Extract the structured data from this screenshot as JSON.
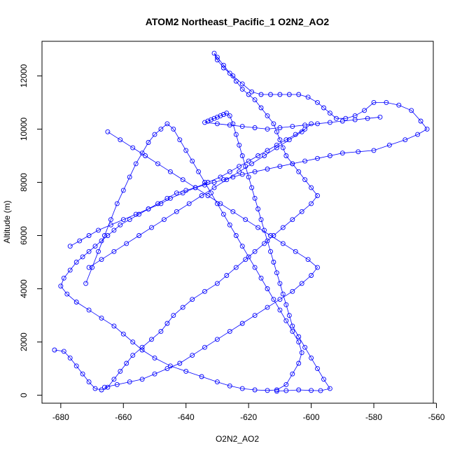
{
  "chart_data": {
    "type": "line",
    "title": "ATOM2 Northeast_Pacific_1 O2N2_AO2",
    "xlabel": "O2N2_AO2",
    "ylabel": "Altitude (m)",
    "xlim": [
      -686,
      -561
    ],
    "ylim": [
      -300,
      13300
    ],
    "xticks": [
      -680,
      -660,
      -640,
      -620,
      -600,
      -580,
      -560
    ],
    "yticks": [
      0,
      2000,
      4000,
      6000,
      8000,
      10000,
      12000
    ],
    "xtick_labels": [
      "-680",
      "-660",
      "-640",
      "-620",
      "-600",
      "-580",
      "-560"
    ],
    "ytick_labels": [
      "0",
      "2000",
      "4000",
      "6000",
      "8000",
      "10000",
      "12000"
    ],
    "grid": false,
    "legend": "none",
    "series": [
      {
        "color": "#0000ff",
        "marker": "open-circle",
        "x": [
          -682,
          -679,
          -677,
          -675,
          -673,
          -671,
          -669,
          -667,
          -665,
          -663,
          -661,
          -659,
          -657,
          -654,
          -651,
          -648,
          -646,
          -644,
          -641,
          -638,
          -634,
          -630,
          -627,
          -624,
          -621,
          -618,
          -615,
          -612,
          -609,
          -606,
          -603,
          -600,
          -598,
          -600,
          -602,
          -604,
          -606,
          -608,
          -609,
          -610,
          -611,
          -612,
          -614,
          -616,
          -618,
          -620,
          -622,
          -624,
          -626,
          -628,
          -630,
          -631,
          -630,
          -628,
          -625,
          -622,
          -619,
          -616,
          -613,
          -610,
          -607,
          -604,
          -601,
          -598,
          -596,
          -594,
          -592,
          -589,
          -586,
          -583,
          -580,
          -576,
          -572,
          -568,
          -565,
          -563,
          -566,
          -570,
          -575,
          -580,
          -585,
          -590,
          -594,
          -598,
          -602,
          -606,
          -610,
          -614,
          -618,
          -622,
          -625,
          -628,
          -631,
          -634,
          -637,
          -640,
          -643,
          -646,
          -649,
          -652,
          -655,
          -658,
          -661,
          -663,
          -665,
          -667,
          -669,
          -671,
          -673,
          -675,
          -677,
          -679,
          -680,
          -678,
          -675,
          -671,
          -667,
          -663,
          -660,
          -657,
          -654,
          -650,
          -645,
          -640,
          -635,
          -630,
          -626,
          -622,
          -618,
          -614,
          -611,
          -608,
          -606,
          -604,
          -603,
          -604,
          -606,
          -608,
          -610,
          -612,
          -614,
          -616,
          -618,
          -620,
          -622,
          -624,
          -626,
          -628,
          -630,
          -632,
          -634,
          -636,
          -638,
          -640,
          -642,
          -644,
          -646,
          -648,
          -650,
          -652,
          -654,
          -656,
          -658,
          -660,
          -662,
          -664,
          -666,
          -668,
          -670,
          -672
        ],
        "y": [
          1700,
          1650,
          1400,
          1100,
          800,
          500,
          250,
          200,
          300,
          600,
          900,
          1200,
          1500,
          1800,
          2100,
          2400,
          2700,
          3000,
          3300,
          3600,
          3900,
          4200,
          4500,
          4800,
          5100,
          5400,
          5700,
          6000,
          6300,
          6600,
          6900,
          7200,
          7500,
          7800,
          8100,
          8400,
          8700,
          9000,
          9300,
          9600,
          9900,
          10200,
          10500,
          10800,
          11100,
          11300,
          11500,
          11800,
          12100,
          12400,
          12700,
          12850,
          12600,
          12300,
          12000,
          11700,
          11400,
          11300,
          11300,
          11300,
          11300,
          11300,
          11200,
          11000,
          10800,
          10600,
          10400,
          10400,
          10500,
          10700,
          11000,
          11000,
          10900,
          10700,
          10300,
          10000,
          9800,
          9600,
          9400,
          9200,
          9150,
          9100,
          9000,
          8900,
          8800,
          8700,
          8600,
          8500,
          8400,
          8300,
          8200,
          8100,
          8000,
          7900,
          7800,
          7700,
          7600,
          7400,
          7200,
          7000,
          6800,
          6600,
          6400,
          6200,
          6000,
          5800,
          5600,
          5400,
          5200,
          5000,
          4700,
          4400,
          4100,
          3800,
          3500,
          3200,
          2900,
          2600,
          2300,
          2000,
          1700,
          1400,
          1100,
          900,
          700,
          500,
          350,
          250,
          200,
          180,
          200,
          400,
          800,
          1200,
          1600,
          2000,
          2400,
          2800,
          3200,
          3600,
          4000,
          4400,
          4800,
          5200,
          5600,
          6000,
          6400,
          6800,
          7200,
          7600,
          8000,
          8400,
          8800,
          9200,
          9600,
          10000,
          10200,
          10000,
          9800,
          9500,
          9100,
          8700,
          8200,
          7700,
          7200,
          6600,
          6000,
          5400,
          4800,
          4200
        ]
      },
      {
        "color": "#0000ff",
        "marker": "open-circle",
        "x": [
          -611,
          -608,
          -604,
          -600,
          -597,
          -594,
          -596,
          -598,
          -600,
          -602,
          -604,
          -606,
          -607,
          -608,
          -609,
          -610,
          -611,
          -612,
          -613,
          -614,
          -615,
          -616,
          -617,
          -618,
          -619,
          -620,
          -621,
          -622,
          -623,
          -624,
          -625,
          -626,
          -627,
          -628,
          -629,
          -630,
          -631,
          -632,
          -633,
          -634,
          -630,
          -626,
          -622,
          -618,
          -614,
          -610,
          -606,
          -602,
          -598,
          -594,
          -590,
          -586,
          -582,
          -578
        ],
        "y": [
          150,
          170,
          200,
          180,
          170,
          250,
          600,
          1000,
          1400,
          1800,
          2200,
          2600,
          3000,
          3400,
          3800,
          4200,
          4600,
          5000,
          5400,
          5800,
          6200,
          6600,
          7000,
          7400,
          7800,
          8200,
          8600,
          9000,
          9400,
          9800,
          10200,
          10500,
          10600,
          10550,
          10500,
          10450,
          10400,
          10350,
          10300,
          10250,
          10200,
          10150,
          10100,
          10050,
          10000,
          10050,
          10100,
          10150,
          10200,
          10250,
          10300,
          10350,
          10400,
          10450
        ]
      },
      {
        "color": "#0000ff",
        "marker": "open-circle",
        "x": [
          -677,
          -674,
          -671,
          -668,
          -664,
          -660,
          -656,
          -652,
          -648,
          -645,
          -641,
          -637,
          -633,
          -629,
          -626,
          -623,
          -620,
          -617,
          -614,
          -611,
          -608,
          -605,
          -602,
          -600,
          -603,
          -607,
          -611,
          -615,
          -619,
          -623,
          -627,
          -631,
          -635,
          -639,
          -643,
          -647,
          -651,
          -655,
          -659,
          -663,
          -667,
          -671
        ],
        "y": [
          5600,
          5800,
          6000,
          6200,
          6400,
          6600,
          6800,
          7000,
          7200,
          7400,
          7600,
          7800,
          8000,
          8200,
          8400,
          8600,
          8800,
          9000,
          9200,
          9400,
          9600,
          9800,
          10000,
          10200,
          9900,
          9600,
          9300,
          9000,
          8700,
          8400,
          8100,
          7800,
          7500,
          7200,
          6900,
          6600,
          6300,
          6000,
          5700,
          5400,
          5100,
          4800
        ]
      },
      {
        "color": "#0000ff",
        "marker": "open-circle",
        "x": [
          -666,
          -662,
          -658,
          -654,
          -650,
          -646,
          -642,
          -638,
          -634,
          -630,
          -626,
          -622,
          -618,
          -614,
          -610,
          -606,
          -603,
          -600,
          -598,
          -601,
          -605,
          -609,
          -613,
          -617,
          -621,
          -625,
          -629,
          -633,
          -637,
          -641,
          -645,
          -649,
          -653,
          -657,
          -661,
          -665
        ],
        "y": [
          300,
          400,
          500,
          600,
          800,
          1000,
          1200,
          1500,
          1800,
          2100,
          2400,
          2700,
          3000,
          3300,
          3600,
          3900,
          4200,
          4500,
          4800,
          5100,
          5400,
          5700,
          6000,
          6300,
          6600,
          6900,
          7200,
          7500,
          7800,
          8100,
          8400,
          8700,
          9000,
          9300,
          9600,
          9900
        ]
      }
    ]
  }
}
